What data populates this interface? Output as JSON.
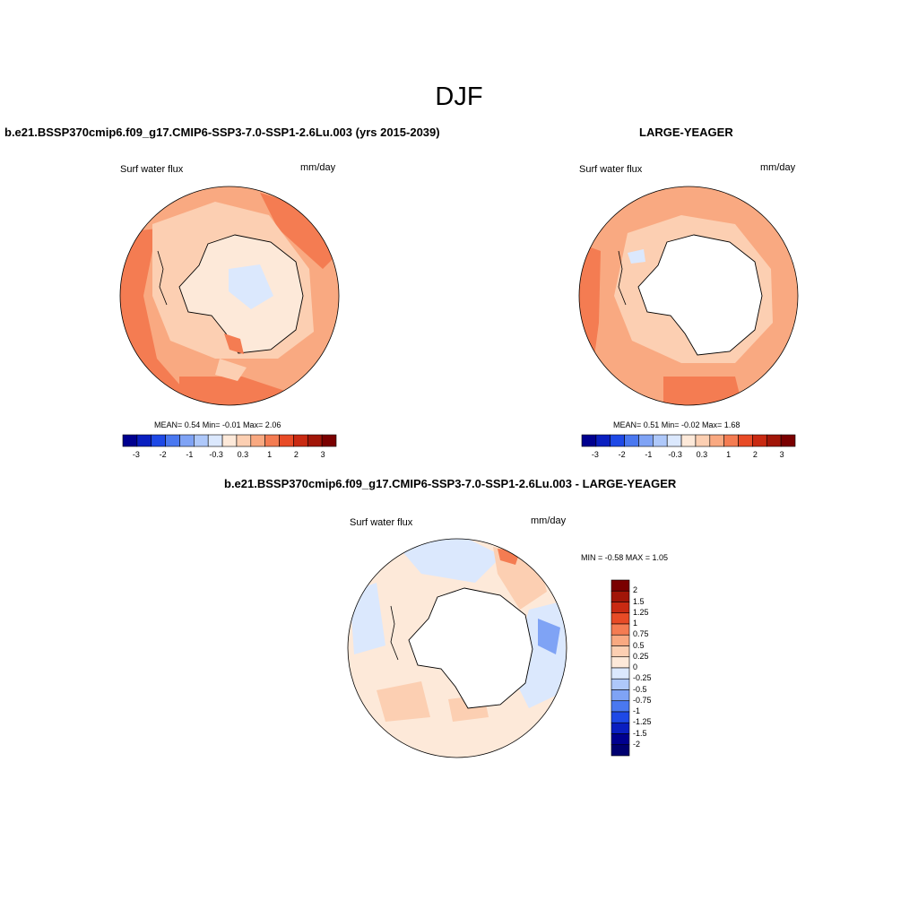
{
  "main_title": "DJF",
  "panels": [
    {
      "title": "b.e21.BSSP370cmip6.f09_g17.CMIP6-SSP3-7.0-SSP1-2.6Lu.003 (yrs 2015-2039)",
      "variable": "Surf water flux",
      "units": "mm/day",
      "stats": "MEAN=   0.54  Min=  -0.01  Max=   2.06"
    },
    {
      "title": "LARGE-YEAGER",
      "variable": "Surf water flux",
      "units": "mm/day",
      "stats": "MEAN=   0.51  Min=  -0.02  Max=   1.68"
    },
    {
      "title": "b.e21.BSSP370cmip6.f09_g17.CMIP6-SSP3-7.0-SSP1-2.6Lu.003 - LARGE-YEAGER",
      "variable": "Surf water flux",
      "units": "mm/day",
      "stats": "MIN =  -0.58 MAX =   1.05"
    }
  ],
  "colorbar_horizontal": {
    "ticks": [
      "-3",
      "-2",
      "-1",
      "-0.3",
      "0.3",
      "1",
      "2",
      "3"
    ],
    "colors": [
      "#00008f",
      "#0a1fc0",
      "#1e49e6",
      "#4a78f0",
      "#7fa3f5",
      "#aec8fa",
      "#dbe8fd",
      "#fde9d9",
      "#fccfb2",
      "#f9a981",
      "#f47c52",
      "#e84b26",
      "#c92a12",
      "#a11608",
      "#7a0000"
    ]
  },
  "colorbar_vertical": {
    "ticks": [
      "2",
      "1.5",
      "1.25",
      "1",
      "0.75",
      "0.5",
      "0.25",
      "0",
      "-0.25",
      "-0.5",
      "-0.75",
      "-1",
      "-1.25",
      "-1.5",
      "-2"
    ],
    "colors": [
      "#7a0000",
      "#a11608",
      "#c92a12",
      "#e84b26",
      "#f47c52",
      "#f9a981",
      "#fccfb2",
      "#fde9d9",
      "#dbe8fd",
      "#aec8fa",
      "#7fa3f5",
      "#4a78f0",
      "#1e49e6",
      "#0a1fc0",
      "#00008f",
      "#000070"
    ]
  }
}
